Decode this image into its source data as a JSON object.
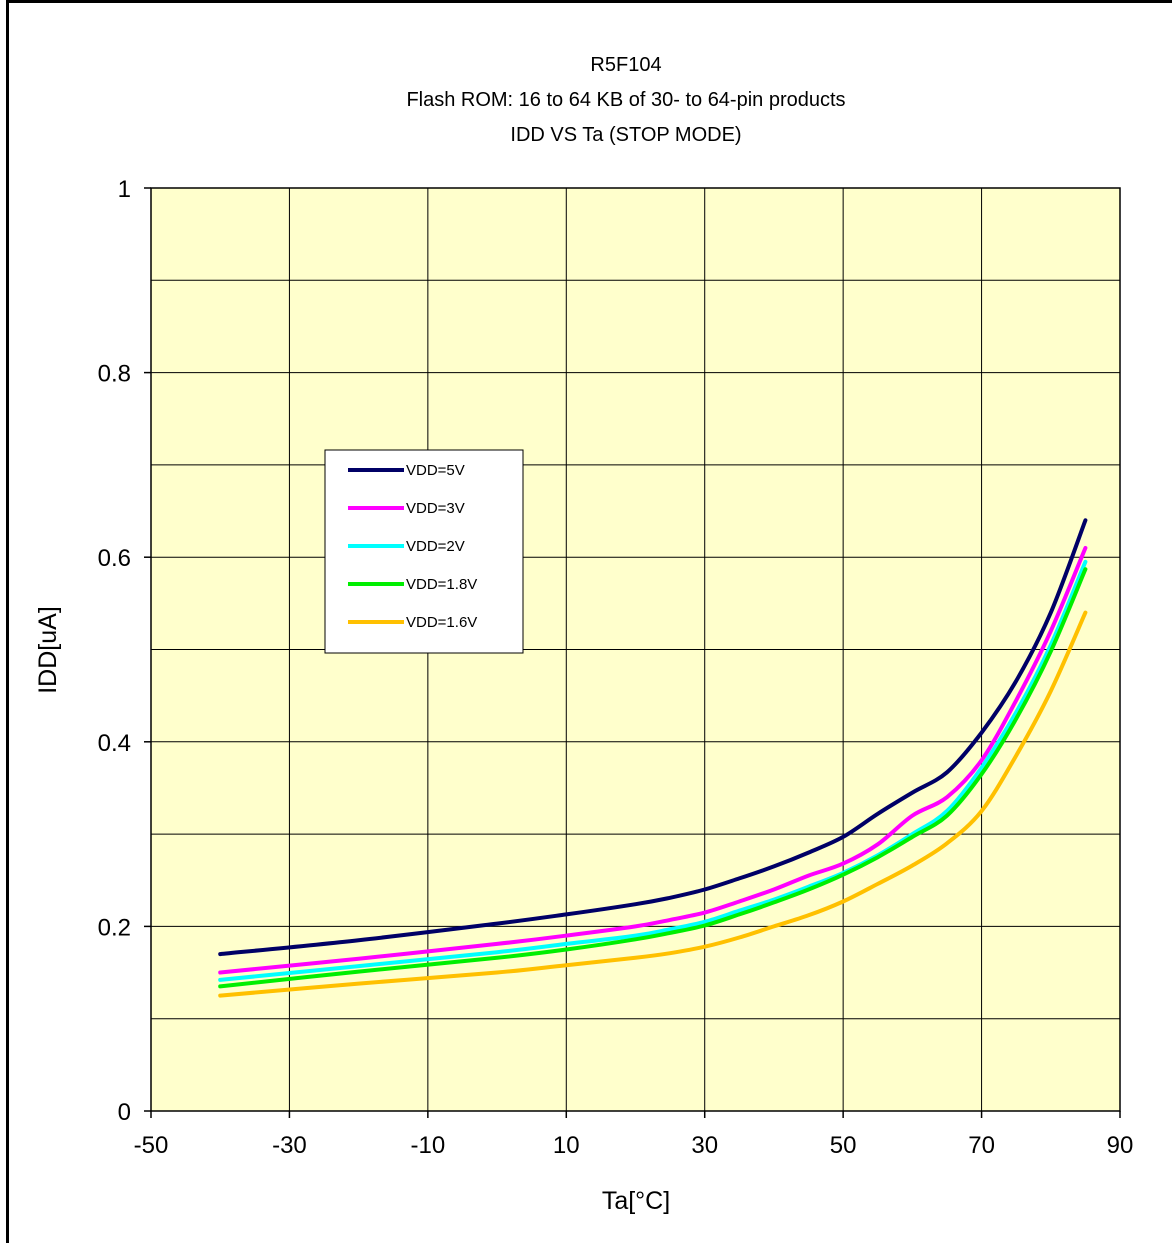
{
  "chart_data": {
    "type": "line",
    "title_lines": [
      "R5F104",
      "Flash ROM: 16 to 64 KB of 30- to 64-pin products",
      "IDD VS Ta (STOP MODE)"
    ],
    "xlabel": "Ta[°C]",
    "ylabel": "IDD[uA]",
    "xlim": [
      -50,
      90
    ],
    "ylim": [
      0,
      1
    ],
    "x_ticks": [
      -50,
      -30,
      -10,
      10,
      30,
      50,
      70,
      90
    ],
    "y_ticks": [
      0,
      0.2,
      0.4,
      0.6,
      0.8,
      1
    ],
    "y_tick_labels": [
      "0",
      "0.2",
      "0.4",
      "0.6",
      "0.8",
      "1"
    ],
    "x_tick_labels": [
      "-50",
      "-30",
      "-10",
      "10",
      "30",
      "50",
      "70",
      "90"
    ],
    "grid": true,
    "plot_background": "#ffffcc",
    "legend_position": "left-middle",
    "x": [
      -40,
      -20,
      0,
      10,
      20,
      25,
      30,
      35,
      40,
      45,
      50,
      55,
      60,
      65,
      70,
      75,
      80,
      85
    ],
    "series": [
      {
        "name": "VDD=5V",
        "color": "#000066",
        "values": [
          0.17,
          0.185,
          0.203,
          0.213,
          0.224,
          0.231,
          0.24,
          0.252,
          0.265,
          0.28,
          0.297,
          0.322,
          0.345,
          0.367,
          0.41,
          0.466,
          0.54,
          0.64
        ]
      },
      {
        "name": "VDD=3V",
        "color": "#ff00ff",
        "values": [
          0.15,
          0.165,
          0.181,
          0.19,
          0.2,
          0.207,
          0.215,
          0.227,
          0.24,
          0.255,
          0.268,
          0.289,
          0.32,
          0.34,
          0.38,
          0.445,
          0.52,
          0.61
        ]
      },
      {
        "name": "VDD=2V",
        "color": "#00ffff",
        "values": [
          0.142,
          0.157,
          0.172,
          0.181,
          0.19,
          0.197,
          0.205,
          0.217,
          0.229,
          0.243,
          0.258,
          0.277,
          0.3,
          0.325,
          0.372,
          0.432,
          0.505,
          0.595
        ]
      },
      {
        "name": "VDD=1.8V",
        "color": "#00ee00",
        "values": [
          0.135,
          0.151,
          0.166,
          0.175,
          0.186,
          0.193,
          0.201,
          0.213,
          0.226,
          0.24,
          0.256,
          0.275,
          0.297,
          0.32,
          0.365,
          0.425,
          0.498,
          0.587
        ]
      },
      {
        "name": "VDD=1.6V",
        "color": "#ffc000",
        "values": [
          0.125,
          0.138,
          0.15,
          0.158,
          0.166,
          0.171,
          0.178,
          0.188,
          0.2,
          0.212,
          0.227,
          0.246,
          0.266,
          0.29,
          0.325,
          0.385,
          0.455,
          0.54
        ]
      }
    ]
  }
}
